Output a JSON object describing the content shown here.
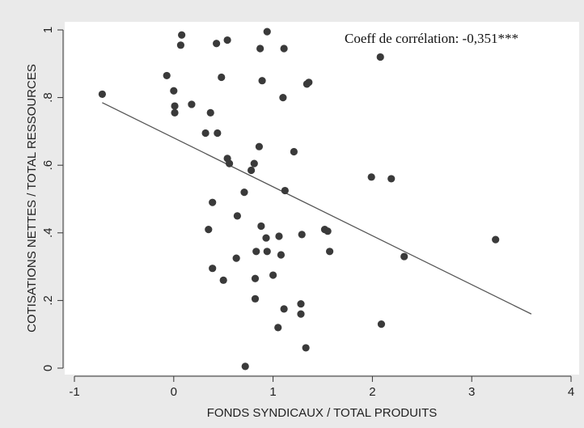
{
  "chart_data": {
    "type": "scatter",
    "title": "",
    "xlabel": "FONDS SYNDICAUX / TOTAL PRODUITS",
    "ylabel": "COTISATIONS NETTES / TOTAL RESSOURCES",
    "annotation": "Coeff de corrélation: -0,351***",
    "xlim": [
      -1.03,
      4.03
    ],
    "ylim": [
      -0.02,
      1.02
    ],
    "xticks": [
      -1,
      0,
      1,
      2,
      3,
      4
    ],
    "xtick_labels": [
      "-1",
      "0",
      "1",
      "2",
      "3",
      "4"
    ],
    "yticks": [
      0,
      0.2,
      0.4,
      0.6,
      0.8,
      1
    ],
    "ytick_labels": [
      "0",
      ".2",
      ".4",
      ".6",
      ".8",
      "1"
    ],
    "grid": false,
    "legend": "none",
    "colors": {
      "points": "#3a3a3a",
      "fit_line": "#555555",
      "plot_background": "#ffffff",
      "outer_background": "#eaeaea"
    },
    "points": [
      [
        0.08,
        0.985
      ],
      [
        0.54,
        0.97
      ],
      [
        0.94,
        0.995
      ],
      [
        0.07,
        0.955
      ],
      [
        0.43,
        0.96
      ],
      [
        0.87,
        0.945
      ],
      [
        1.11,
        0.945
      ],
      [
        2.08,
        0.92
      ],
      [
        -0.07,
        0.865
      ],
      [
        0.48,
        0.86
      ],
      [
        0.89,
        0.85
      ],
      [
        1.34,
        0.84
      ],
      [
        1.36,
        0.845
      ],
      [
        -0.72,
        0.81
      ],
      [
        0.0,
        0.82
      ],
      [
        1.1,
        0.8
      ],
      [
        0.18,
        0.78
      ],
      [
        0.01,
        0.775
      ],
      [
        0.01,
        0.755
      ],
      [
        0.37,
        0.755
      ],
      [
        0.32,
        0.695
      ],
      [
        0.44,
        0.695
      ],
      [
        0.86,
        0.655
      ],
      [
        1.21,
        0.64
      ],
      [
        0.54,
        0.62
      ],
      [
        0.56,
        0.605
      ],
      [
        0.81,
        0.605
      ],
      [
        0.78,
        0.585
      ],
      [
        1.99,
        0.565
      ],
      [
        2.19,
        0.56
      ],
      [
        1.12,
        0.525
      ],
      [
        0.71,
        0.52
      ],
      [
        0.39,
        0.49
      ],
      [
        0.64,
        0.45
      ],
      [
        0.88,
        0.42
      ],
      [
        0.35,
        0.41
      ],
      [
        1.52,
        0.41
      ],
      [
        1.55,
        0.405
      ],
      [
        1.29,
        0.395
      ],
      [
        1.06,
        0.39
      ],
      [
        0.93,
        0.385
      ],
      [
        3.24,
        0.38
      ],
      [
        0.83,
        0.345
      ],
      [
        0.94,
        0.345
      ],
      [
        1.08,
        0.335
      ],
      [
        1.57,
        0.345
      ],
      [
        2.32,
        0.33
      ],
      [
        0.63,
        0.325
      ],
      [
        0.39,
        0.295
      ],
      [
        0.82,
        0.265
      ],
      [
        1.0,
        0.275
      ],
      [
        0.5,
        0.26
      ],
      [
        0.82,
        0.205
      ],
      [
        1.28,
        0.19
      ],
      [
        1.11,
        0.175
      ],
      [
        1.28,
        0.16
      ],
      [
        2.09,
        0.13
      ],
      [
        1.05,
        0.12
      ],
      [
        1.33,
        0.06
      ],
      [
        0.72,
        0.005
      ]
    ],
    "fit_line": {
      "x": [
        -0.72,
        3.6
      ],
      "y": [
        0.785,
        0.16
      ]
    }
  }
}
